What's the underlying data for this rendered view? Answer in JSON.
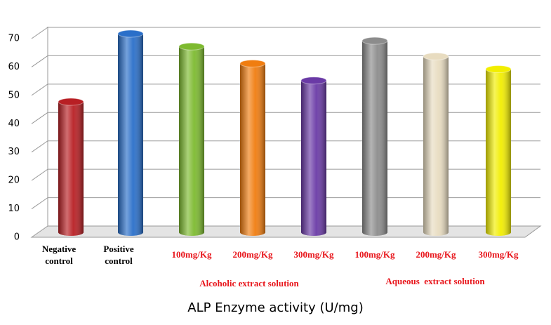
{
  "chart_data": {
    "type": "bar",
    "title": "ALP Enzyme activity (U/mg)",
    "categories": [
      "Negative control",
      "Positive control",
      "100mg/Kg",
      "200mg/Kg",
      "300mg/Kg",
      "100mg/Kg",
      "200mg/Kg",
      "300mg/Kg"
    ],
    "label_colors": [
      "#000000",
      "#000000",
      "#e8151b",
      "#e8151b",
      "#e8151b",
      "#e8151b",
      "#e8151b",
      "#e8151b"
    ],
    "values": [
      46,
      70,
      65.5,
      59.5,
      53.5,
      67.5,
      62,
      57.5
    ],
    "colors": [
      "#b81f24",
      "#2a6fc9",
      "#7dba2f",
      "#f07d10",
      "#6a3aa6",
      "#8c8c8c",
      "#e8dcc0",
      "#f2ee00"
    ],
    "groups": [
      {
        "label": "Alcoholic extract solution",
        "color": "#e8151b"
      },
      {
        "label": "Aqueous  extract solution",
        "color": "#e8151b"
      }
    ],
    "ylim": [
      0,
      70
    ],
    "yticks": [
      0,
      10,
      20,
      30,
      40,
      50,
      60,
      70
    ],
    "grid": true
  }
}
